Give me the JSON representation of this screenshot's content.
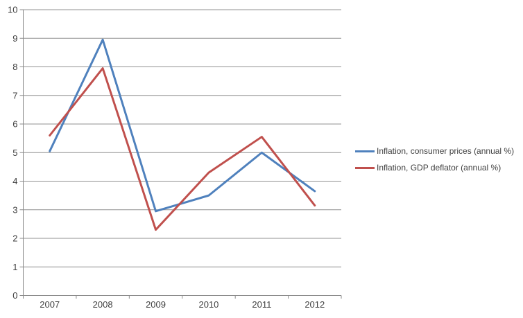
{
  "chart_data": {
    "type": "line",
    "title": "",
    "xlabel": "",
    "ylabel": "",
    "categories": [
      "2007",
      "2008",
      "2009",
      "2010",
      "2011",
      "2012"
    ],
    "series": [
      {
        "name": "Inflation, consumer prices (annual %)",
        "color": "#4F81BD",
        "values": [
          5.05,
          8.95,
          2.95,
          3.5,
          5.0,
          3.65
        ]
      },
      {
        "name": "Inflation, GDP deflator (annual %)",
        "color": "#C0504D",
        "values": [
          5.6,
          7.95,
          2.3,
          4.3,
          5.55,
          3.15
        ]
      }
    ],
    "ylim": [
      0,
      10
    ],
    "y_ticks": [
      0,
      1,
      2,
      3,
      4,
      5,
      6,
      7,
      8,
      9,
      10
    ],
    "grid": true,
    "legend_position": "right"
  },
  "colors": {
    "background": "#ffffff",
    "grid": "#909090",
    "axis": "#8a8a8a",
    "tick_label": "#404040"
  }
}
